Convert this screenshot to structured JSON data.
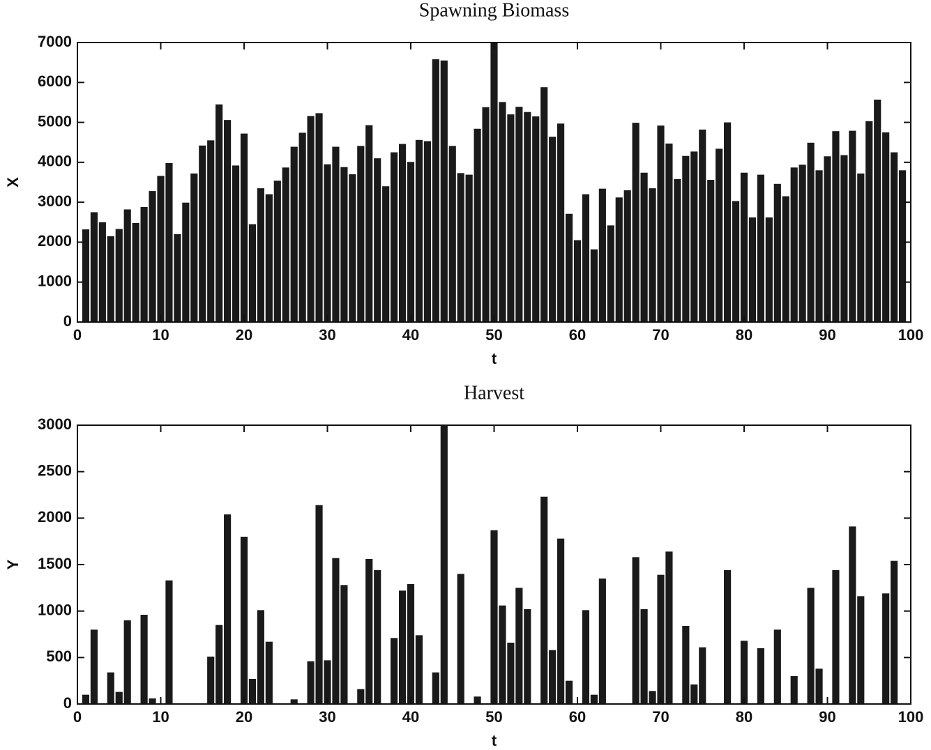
{
  "chart_data": [
    {
      "type": "bar",
      "title": "Spawning Biomass",
      "xlabel": "t",
      "ylabel": "X",
      "color": "#1a1a1a",
      "x": [
        1,
        2,
        3,
        4,
        5,
        6,
        7,
        8,
        9,
        10,
        11,
        12,
        13,
        14,
        15,
        16,
        17,
        18,
        19,
        20,
        21,
        22,
        23,
        24,
        25,
        26,
        27,
        28,
        29,
        30,
        31,
        32,
        33,
        34,
        35,
        36,
        37,
        38,
        39,
        40,
        41,
        42,
        43,
        44,
        45,
        46,
        47,
        48,
        49,
        50,
        51,
        52,
        53,
        54,
        55,
        56,
        57,
        58,
        59,
        60,
        61,
        62,
        63,
        64,
        65,
        66,
        67,
        68,
        69,
        70,
        71,
        72,
        73,
        74,
        75,
        76,
        77,
        78,
        79,
        80,
        81,
        82,
        83,
        84,
        85,
        86,
        87,
        88,
        89,
        90,
        91,
        92,
        93,
        94,
        95,
        96,
        97,
        98,
        99
      ],
      "values": [
        2320,
        2750,
        2500,
        2150,
        2330,
        2820,
        2480,
        2880,
        3280,
        3660,
        3980,
        2200,
        2990,
        3720,
        4420,
        4550,
        5450,
        5060,
        3920,
        4720,
        2450,
        3350,
        3200,
        3540,
        3870,
        4390,
        4740,
        5160,
        5230,
        3950,
        4390,
        3880,
        3700,
        4410,
        4930,
        4100,
        3400,
        4250,
        4460,
        4010,
        4560,
        4530,
        6580,
        6550,
        4410,
        3730,
        3690,
        4840,
        5380,
        7000,
        5510,
        5200,
        5390,
        5260,
        5150,
        5880,
        4640,
        4970,
        2710,
        2050,
        3200,
        1820,
        3340,
        2420,
        3120,
        3300,
        4990,
        3740,
        3350,
        4920,
        4470,
        3580,
        4160,
        4270,
        4820,
        3560,
        4340,
        5000,
        3030,
        3740,
        2620,
        3690,
        2620,
        3460,
        3150,
        3870,
        3940,
        4490,
        3800,
        4150,
        4780,
        4180,
        4790,
        3720,
        5030,
        5570,
        4750,
        4250,
        3800
      ],
      "xlim": [
        0,
        100
      ],
      "xticks": [
        0,
        10,
        20,
        30,
        40,
        50,
        60,
        70,
        80,
        90,
        100
      ],
      "ylim": [
        0,
        7000
      ],
      "yticks": [
        0,
        1000,
        2000,
        3000,
        4000,
        5000,
        6000,
        7000
      ]
    },
    {
      "type": "bar",
      "title": "Harvest",
      "xlabel": "t",
      "ylabel": "Y",
      "color": "#1a1a1a",
      "x": [
        1,
        2,
        3,
        4,
        5,
        6,
        7,
        8,
        9,
        10,
        11,
        12,
        13,
        14,
        15,
        16,
        17,
        18,
        19,
        20,
        21,
        22,
        23,
        24,
        25,
        26,
        27,
        28,
        29,
        30,
        31,
        32,
        33,
        34,
        35,
        36,
        37,
        38,
        39,
        40,
        41,
        42,
        43,
        44,
        45,
        46,
        47,
        48,
        49,
        50,
        51,
        52,
        53,
        54,
        55,
        56,
        57,
        58,
        59,
        60,
        61,
        62,
        63,
        64,
        65,
        66,
        67,
        68,
        69,
        70,
        71,
        72,
        73,
        74,
        75,
        76,
        77,
        78,
        79,
        80,
        81,
        82,
        83,
        84,
        85,
        86,
        87,
        88,
        89,
        90,
        91,
        92,
        93,
        94,
        95,
        96,
        97,
        98,
        99
      ],
      "values": [
        100,
        800,
        0,
        340,
        130,
        900,
        0,
        960,
        60,
        0,
        1330,
        0,
        0,
        0,
        0,
        510,
        850,
        2040,
        0,
        1800,
        270,
        1010,
        670,
        0,
        0,
        50,
        0,
        460,
        2140,
        470,
        1570,
        1280,
        0,
        160,
        1560,
        1440,
        0,
        710,
        1220,
        1290,
        740,
        0,
        340,
        3000,
        0,
        1400,
        0,
        80,
        0,
        1870,
        1060,
        660,
        1250,
        1020,
        0,
        2230,
        580,
        1780,
        250,
        0,
        1010,
        100,
        1350,
        0,
        0,
        0,
        1580,
        1020,
        140,
        1390,
        1640,
        0,
        840,
        210,
        610,
        0,
        0,
        1440,
        0,
        680,
        0,
        600,
        0,
        800,
        0,
        300,
        0,
        1250,
        380,
        0,
        1440,
        0,
        1910,
        1160,
        0,
        0,
        1190,
        1540,
        0
      ],
      "xlim": [
        0,
        100
      ],
      "xticks": [
        0,
        10,
        20,
        30,
        40,
        50,
        60,
        70,
        80,
        90,
        100
      ],
      "ylim": [
        0,
        3000
      ],
      "yticks": [
        0,
        500,
        1000,
        1500,
        2000,
        2500,
        3000
      ]
    }
  ]
}
